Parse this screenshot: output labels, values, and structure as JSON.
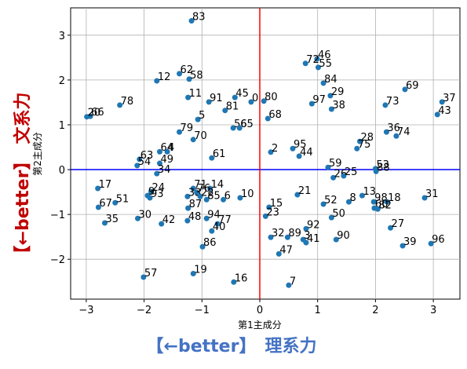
{
  "chart_data": {
    "type": "scatter",
    "xlabel": "第1主成分",
    "ylabel": "第2主成分",
    "x_annotation": "【←better】　理系力",
    "y_annotation": "【←better】　文系力",
    "color": "#1f77b4",
    "axhline": {
      "y": 0,
      "color": "#0000ff"
    },
    "axvline": {
      "x": 0,
      "color": "#ff0000"
    },
    "grid": true,
    "xlim": [
      -3.27,
      3.46
    ],
    "ylim": [
      -2.89,
      3.61
    ],
    "xticks": [
      {
        "value": -3,
        "label": "−3"
      },
      {
        "value": -2,
        "label": "−2"
      },
      {
        "value": -1,
        "label": "−1"
      },
      0,
      1,
      2,
      3
    ],
    "yticks": [
      {
        "value": -2,
        "label": "−2"
      },
      {
        "value": -1,
        "label": "−1"
      },
      0,
      1,
      2,
      3
    ],
    "labels": [
      "0",
      "83",
      "46",
      "72",
      "55",
      "62",
      "58",
      "12",
      "84",
      "69",
      "11",
      "29",
      "91",
      "45",
      "80",
      "37",
      "73",
      "78",
      "97",
      "38",
      "81",
      "66",
      "20",
      "43",
      "68",
      "5",
      "56",
      "65",
      "36",
      "74",
      "79",
      "70",
      "28",
      "75",
      "95",
      "2",
      "64",
      "4",
      "44",
      "61",
      "63",
      "49",
      "54",
      "59",
      "53",
      "88",
      "34",
      "26",
      "25",
      "17",
      "71",
      "14",
      "24",
      "76",
      "9",
      "93",
      "33",
      "22",
      "85",
      "6",
      "10",
      "21",
      "13",
      "8",
      "52",
      "98",
      "18",
      "31",
      "51",
      "67",
      "87",
      "15",
      "60",
      "82",
      "23",
      "94",
      "48",
      "30",
      "50",
      "42",
      "35",
      "77",
      "40",
      "92",
      "27",
      "32",
      "89",
      "3",
      "41",
      "90",
      "39",
      "96",
      "86",
      "47",
      "19",
      "57",
      "16",
      "7"
    ],
    "x": [
      -0.15,
      -1.18,
      0.99,
      0.79,
      1.01,
      -1.39,
      -1.22,
      -1.78,
      1.1,
      2.51,
      -1.24,
      1.22,
      -0.88,
      -0.43,
      0.07,
      3.15,
      2.17,
      -2.42,
      0.9,
      1.24,
      -0.6,
      -2.93,
      -2.99,
      3.07,
      0.14,
      -1.07,
      -0.46,
      -0.35,
      2.19,
      2.36,
      -1.39,
      -1.15,
      1.73,
      1.68,
      0.57,
      0.19,
      -1.73,
      -1.6,
      0.68,
      -0.83,
      -2.08,
      -1.73,
      -2.12,
      1.18,
      2.0,
      2.01,
      -1.78,
      1.27,
      1.45,
      -2.8,
      -1.15,
      -0.86,
      -1.88,
      -1.09,
      -1.94,
      -1.9,
      -1.25,
      -1.03,
      -0.92,
      -0.63,
      -0.34,
      0.65,
      1.77,
      1.54,
      1.1,
      1.97,
      2.2,
      2.85,
      -2.5,
      -2.79,
      -1.24,
      0.16,
      1.98,
      2.04,
      0.1,
      -0.92,
      -1.25,
      -2.11,
      1.24,
      -1.7,
      -2.68,
      -0.73,
      -0.83,
      0.8,
      2.26,
      0.19,
      0.48,
      0.75,
      0.8,
      1.32,
      2.47,
      2.96,
      -0.99,
      0.33,
      -1.15,
      -2.01,
      -0.45,
      0.5
    ],
    "y": [
      1.51,
      3.32,
      2.47,
      2.37,
      2.28,
      2.14,
      2.02,
      1.98,
      1.93,
      1.79,
      1.61,
      1.65,
      1.51,
      1.61,
      1.53,
      1.51,
      1.44,
      1.44,
      1.47,
      1.35,
      1.32,
      1.19,
      1.18,
      1.23,
      1.14,
      1.12,
      0.93,
      0.93,
      0.84,
      0.75,
      0.84,
      0.67,
      0.63,
      0.47,
      0.47,
      0.39,
      0.4,
      0.4,
      0.3,
      0.26,
      0.23,
      0.14,
      0.09,
      0.05,
      0.02,
      -0.04,
      -0.09,
      -0.18,
      -0.14,
      -0.42,
      -0.42,
      -0.42,
      -0.49,
      -0.51,
      -0.58,
      -0.63,
      -0.6,
      -0.6,
      -0.67,
      -0.67,
      -0.63,
      -0.56,
      -0.58,
      -0.72,
      -0.77,
      -0.72,
      -0.72,
      -0.63,
      -0.74,
      -0.84,
      -0.86,
      -0.84,
      -0.86,
      -0.88,
      -1.04,
      -1.09,
      -1.14,
      -1.09,
      -1.07,
      -1.21,
      -1.19,
      -1.21,
      -1.37,
      -1.32,
      -1.3,
      -1.51,
      -1.51,
      -1.56,
      -1.63,
      -1.56,
      -1.7,
      -1.65,
      -1.72,
      -1.88,
      -2.32,
      -2.4,
      -2.51,
      -2.58
    ]
  }
}
